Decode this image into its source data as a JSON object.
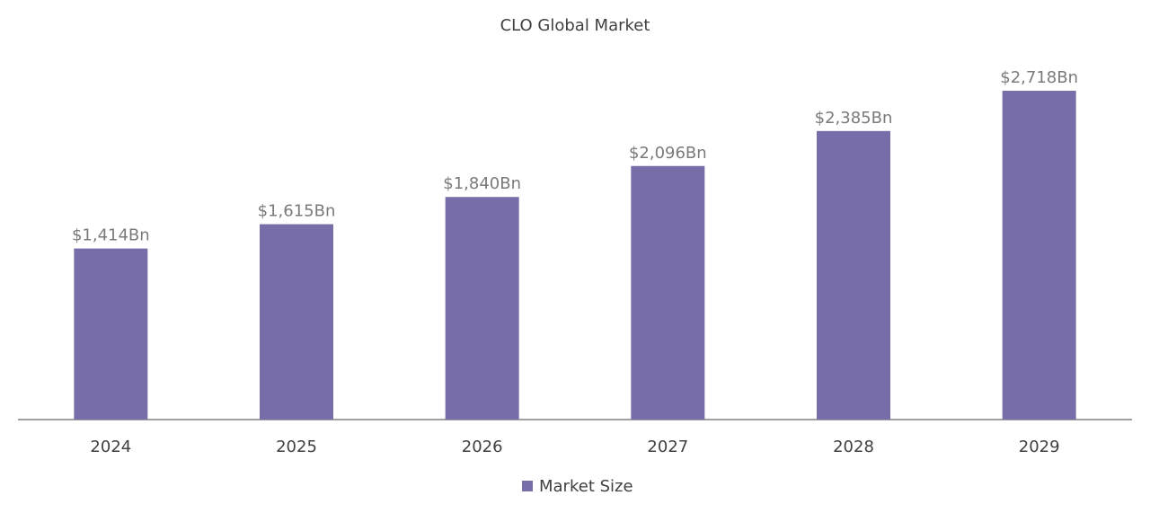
{
  "chart_data": {
    "type": "bar",
    "title": "CLO Global Market",
    "categories": [
      "2024",
      "2025",
      "2026",
      "2027",
      "2028",
      "2029"
    ],
    "series": [
      {
        "name": "Market Size",
        "color": "#776da8",
        "values": [
          1414,
          1615,
          1840,
          2096,
          2385,
          2718
        ],
        "value_labels": [
          "$1,414Bn",
          "$1,615Bn",
          "$1,840Bn",
          "$2,096Bn",
          "$2,385Bn",
          "$2,718Bn"
        ]
      }
    ],
    "legend": "bottom"
  }
}
